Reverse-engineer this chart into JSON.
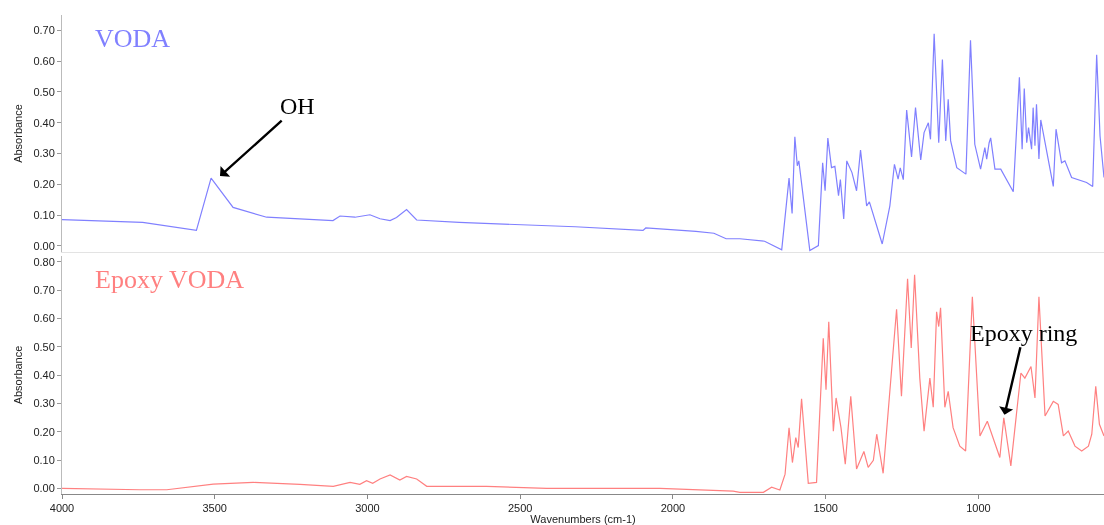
{
  "chart_data": [
    {
      "type": "line",
      "ylabel": "Absorbance",
      "tick_labels": "y",
      "xlim": [
        4000,
        589
      ],
      "ylim": [
        -0.02,
        0.75
      ],
      "yticks": [
        {
          "value": 0,
          "label": "0.00"
        },
        {
          "value": 0.1,
          "label": "0.10"
        },
        {
          "value": 0.2,
          "label": "0.20"
        },
        {
          "value": 0.3,
          "label": "0.30"
        },
        {
          "value": 0.4,
          "label": "0.40"
        },
        {
          "value": 0.5,
          "label": "0.50"
        },
        {
          "value": 0.6,
          "label": "0.60"
        },
        {
          "value": 0.7,
          "label": "0.70"
        }
      ],
      "grid": false,
      "marker": "none",
      "line_style": "solid",
      "annotations": [
        {
          "text": "OH",
          "x": 3490,
          "y": 0.22
        }
      ],
      "x": [
        4000,
        3736,
        3560,
        3512,
        3440,
        3330,
        3113,
        3090,
        3041,
        2992,
        2959,
        2926,
        2905,
        2872,
        2839,
        2700,
        2320,
        2098,
        2089,
        1925,
        1866,
        1826,
        1781,
        1700,
        1644,
        1620,
        1610,
        1601,
        1593,
        1588,
        1552,
        1524,
        1510,
        1502,
        1493,
        1481,
        1470,
        1458,
        1452,
        1441,
        1431,
        1414,
        1399,
        1386,
        1366,
        1357,
        1315,
        1290,
        1275,
        1263,
        1256,
        1246,
        1235,
        1219,
        1206,
        1189,
        1178,
        1164,
        1157,
        1145,
        1130,
        1118,
        1107,
        1099,
        1091,
        1071,
        1041,
        1026,
        1012,
        993,
        979,
        973,
        965,
        960,
        946,
        927,
        886,
        866,
        857,
        850,
        842,
        836,
        826,
        821,
        815,
        810,
        802,
        796,
        755,
        746,
        728,
        717,
        695,
        646,
        626,
        613,
        602,
        589
      ],
      "series": [
        {
          "name": "VODA",
          "color": "#8080ff",
          "values": [
            0.085,
            0.076,
            0.05,
            0.22,
            0.125,
            0.093,
            0.082,
            0.097,
            0.093,
            0.101,
            0.088,
            0.082,
            0.092,
            0.118,
            0.084,
            0.076,
            0.062,
            0.05,
            0.058,
            0.047,
            0.041,
            0.023,
            0.023,
            0.015,
            -0.013,
            0.22,
            0.105,
            0.354,
            0.26,
            0.276,
            -0.015,
            0.001,
            0.27,
            0.179,
            0.35,
            0.254,
            0.258,
            0.163,
            0.215,
            0.087,
            0.276,
            0.238,
            0.179,
            0.311,
            0.13,
            0.143,
            0.006,
            0.13,
            0.265,
            0.217,
            0.253,
            0.215,
            0.441,
            0.289,
            0.449,
            0.279,
            0.368,
            0.4,
            0.346,
            0.689,
            0.335,
            0.605,
            0.341,
            0.476,
            0.341,
            0.254,
            0.233,
            0.668,
            0.33,
            0.249,
            0.319,
            0.282,
            0.335,
            0.351,
            0.249,
            0.249,
            0.176,
            0.548,
            0.314,
            0.511,
            0.335,
            0.384,
            0.314,
            0.449,
            0.325,
            0.46,
            0.282,
            0.409,
            0.193,
            0.379,
            0.27,
            0.276,
            0.222,
            0.206,
            0.193,
            0.621,
            0.357,
            0.222
          ]
        }
      ]
    },
    {
      "type": "line",
      "xlabel": "Wavenumbers (cm-1)",
      "ylabel": "Absorbance",
      "xlim": [
        4000,
        589
      ],
      "ylim": [
        -0.02,
        0.82
      ],
      "xticks": [
        4000,
        3500,
        3000,
        2500,
        2000,
        1500,
        1000
      ],
      "yticks": [
        {
          "value": 0,
          "label": "0.00"
        },
        {
          "value": 0.1,
          "label": "0.10"
        },
        {
          "value": 0.2,
          "label": "0.20"
        },
        {
          "value": 0.3,
          "label": "0.30"
        },
        {
          "value": 0.4,
          "label": "0.40"
        },
        {
          "value": 0.5,
          "label": "0.50"
        },
        {
          "value": 0.6,
          "label": "0.60"
        },
        {
          "value": 0.7,
          "label": "0.70"
        },
        {
          "value": 0.8,
          "label": "0.80"
        }
      ],
      "grid": false,
      "marker": "none",
      "line_style": "solid",
      "annotations": [
        {
          "text": "Epoxy ring",
          "x": 917,
          "y": 0.249
        }
      ],
      "x": [
        4000,
        3745,
        3657,
        3505,
        3374,
        3221,
        3112,
        3057,
        3025,
        3003,
        2983,
        2959,
        2926,
        2894,
        2872,
        2839,
        2806,
        2610,
        2413,
        2043,
        1803,
        1781,
        1704,
        1677,
        1650,
        1633,
        1620,
        1609,
        1598,
        1590,
        1579,
        1557,
        1530,
        1508,
        1499,
        1490,
        1475,
        1466,
        1450,
        1436,
        1418,
        1399,
        1375,
        1361,
        1344,
        1333,
        1312,
        1268,
        1252,
        1232,
        1220,
        1209,
        1192,
        1178,
        1159,
        1148,
        1137,
        1130,
        1124,
        1110,
        1099,
        1083,
        1061,
        1042,
        1020,
        995,
        971,
        930,
        917,
        894,
        861,
        848,
        828,
        815,
        802,
        782,
        755,
        739,
        722,
        706,
        684,
        662,
        640,
        629,
        616,
        604,
        589
      ],
      "series": [
        {
          "name": "Epoxy VODA",
          "color": "#ff8080",
          "values": [
            0.0,
            -0.005,
            -0.005,
            0.015,
            0.021,
            0.014,
            0.007,
            0.021,
            0.014,
            0.027,
            0.018,
            0.033,
            0.047,
            0.029,
            0.042,
            0.033,
            0.007,
            0.007,
            0.0,
            0.0,
            -0.01,
            -0.014,
            -0.014,
            0.004,
            -0.006,
            0.05,
            0.214,
            0.091,
            0.179,
            0.144,
            0.316,
            0.018,
            0.021,
            0.53,
            0.348,
            0.588,
            0.202,
            0.319,
            0.214,
            0.085,
            0.325,
            0.068,
            0.13,
            0.074,
            0.099,
            0.191,
            0.053,
            0.632,
            0.325,
            0.74,
            0.495,
            0.754,
            0.389,
            0.202,
            0.389,
            0.286,
            0.623,
            0.571,
            0.637,
            0.286,
            0.342,
            0.214,
            0.149,
            0.132,
            0.676,
            0.185,
            0.237,
            0.109,
            0.249,
            0.079,
            0.407,
            0.389,
            0.43,
            0.319,
            0.676,
            0.255,
            0.307,
            0.296,
            0.185,
            0.202,
            0.149,
            0.132,
            0.149,
            0.191,
            0.36,
            0.226,
            0.185
          ]
        }
      ]
    }
  ]
}
